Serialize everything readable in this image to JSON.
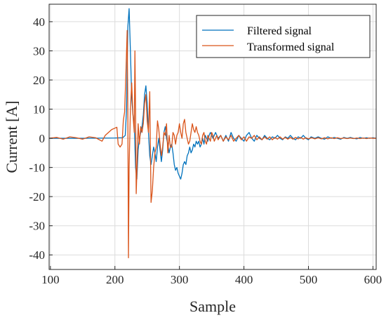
{
  "chart_data": {
    "type": "line",
    "xlabel": "Sample",
    "ylabel": "Current [A]",
    "xlim": [
      98,
      605
    ],
    "ylim": [
      -45,
      46
    ],
    "grid": true,
    "legend_position": "top-right",
    "xticks": [
      100,
      200,
      300,
      400,
      500,
      600
    ],
    "yticks": [
      -40,
      -30,
      -20,
      -10,
      0,
      10,
      20,
      30,
      40
    ],
    "colors": {
      "filtered": "#0072BD",
      "transformed": "#D95319"
    },
    "series": [
      {
        "name": "Filtered signal",
        "color": "#0072BD",
        "points": [
          [
            98,
            0
          ],
          [
            150,
            0
          ],
          [
            200,
            0.1
          ],
          [
            212,
            0.2
          ],
          [
            216,
            1
          ],
          [
            218,
            10
          ],
          [
            220,
            38
          ],
          [
            222,
            44.5
          ],
          [
            224,
            30
          ],
          [
            226,
            14
          ],
          [
            228,
            8
          ],
          [
            230,
            5
          ],
          [
            232,
            -10
          ],
          [
            234,
            -14
          ],
          [
            236,
            -4
          ],
          [
            238,
            0
          ],
          [
            240,
            2
          ],
          [
            242,
            4
          ],
          [
            244,
            8
          ],
          [
            246,
            15
          ],
          [
            248,
            18
          ],
          [
            250,
            12
          ],
          [
            252,
            2
          ],
          [
            254,
            -6
          ],
          [
            256,
            -9
          ],
          [
            258,
            -6
          ],
          [
            260,
            -3
          ],
          [
            262,
            -5
          ],
          [
            264,
            -8
          ],
          [
            266,
            -3
          ],
          [
            268,
            0
          ],
          [
            270,
            -4
          ],
          [
            272,
            -8
          ],
          [
            274,
            -4
          ],
          [
            276,
            2
          ],
          [
            278,
            4
          ],
          [
            280,
            0
          ],
          [
            282,
            -2
          ],
          [
            284,
            -5
          ],
          [
            286,
            -3
          ],
          [
            288,
            -2
          ],
          [
            290,
            -5
          ],
          [
            292,
            -9
          ],
          [
            294,
            -11
          ],
          [
            296,
            -10
          ],
          [
            298,
            -12
          ],
          [
            300,
            -13
          ],
          [
            302,
            -14
          ],
          [
            304,
            -12
          ],
          [
            306,
            -9
          ],
          [
            308,
            -8
          ],
          [
            310,
            -9
          ],
          [
            312,
            -6
          ],
          [
            314,
            -5
          ],
          [
            316,
            -3
          ],
          [
            318,
            -5
          ],
          [
            320,
            -4
          ],
          [
            322,
            -2
          ],
          [
            324,
            -3
          ],
          [
            326,
            -1
          ],
          [
            328,
            -2
          ],
          [
            330,
            -1
          ],
          [
            332,
            -3
          ],
          [
            334,
            -2
          ],
          [
            336,
            0
          ],
          [
            338,
            -2
          ],
          [
            340,
            1
          ],
          [
            342,
            0
          ],
          [
            344,
            -1
          ],
          [
            346,
            1
          ],
          [
            348,
            2
          ],
          [
            350,
            1
          ],
          [
            352,
            0
          ],
          [
            356,
            2
          ],
          [
            360,
            0
          ],
          [
            364,
            1
          ],
          [
            368,
            -1
          ],
          [
            372,
            1
          ],
          [
            376,
            -1
          ],
          [
            380,
            2
          ],
          [
            384,
            0
          ],
          [
            388,
            -1
          ],
          [
            392,
            1
          ],
          [
            396,
            0
          ],
          [
            400,
            -1
          ],
          [
            404,
            1
          ],
          [
            408,
            2
          ],
          [
            412,
            0
          ],
          [
            416,
            -1
          ],
          [
            420,
            1
          ],
          [
            424,
            0
          ],
          [
            428,
            -0.5
          ],
          [
            432,
            1
          ],
          [
            436,
            0
          ],
          [
            440,
            -0.5
          ],
          [
            444,
            0.5
          ],
          [
            448,
            0
          ],
          [
            452,
            1
          ],
          [
            456,
            0
          ],
          [
            460,
            -0.5
          ],
          [
            464,
            0.5
          ],
          [
            468,
            0
          ],
          [
            472,
            1
          ],
          [
            476,
            0
          ],
          [
            480,
            -0.5
          ],
          [
            484,
            0.5
          ],
          [
            488,
            0
          ],
          [
            492,
            1
          ],
          [
            496,
            0
          ],
          [
            500,
            -0.5
          ],
          [
            504,
            0.5
          ],
          [
            510,
            0
          ],
          [
            515,
            0.5
          ],
          [
            520,
            0
          ],
          [
            525,
            -0.3
          ],
          [
            530,
            0.5
          ],
          [
            535,
            0
          ],
          [
            540,
            0.3
          ],
          [
            545,
            0
          ],
          [
            550,
            -0.3
          ],
          [
            555,
            0.3
          ],
          [
            560,
            0
          ],
          [
            565,
            0.3
          ],
          [
            570,
            0
          ],
          [
            575,
            -0.2
          ],
          [
            580,
            0.3
          ],
          [
            585,
            0
          ],
          [
            590,
            0.2
          ],
          [
            595,
            0
          ],
          [
            600,
            0.2
          ],
          [
            605,
            0
          ]
        ]
      },
      {
        "name": "Transformed signal",
        "color": "#D95319",
        "points": [
          [
            98,
            0
          ],
          [
            110,
            0.3
          ],
          [
            120,
            -0.3
          ],
          [
            130,
            0.5
          ],
          [
            140,
            0.2
          ],
          [
            150,
            -0.3
          ],
          [
            160,
            0.5
          ],
          [
            170,
            0.2
          ],
          [
            180,
            -1
          ],
          [
            185,
            1
          ],
          [
            190,
            2
          ],
          [
            195,
            3
          ],
          [
            200,
            3.5
          ],
          [
            203,
            3.8
          ],
          [
            205,
            -2
          ],
          [
            208,
            -3
          ],
          [
            211,
            -2
          ],
          [
            213,
            6
          ],
          [
            215,
            9
          ],
          [
            217,
            22
          ],
          [
            219,
            37
          ],
          [
            220,
            10
          ],
          [
            221,
            -41
          ],
          [
            222,
            -10
          ],
          [
            224,
            10
          ],
          [
            226,
            19
          ],
          [
            228,
            8
          ],
          [
            230,
            2
          ],
          [
            231,
            30
          ],
          [
            232,
            10
          ],
          [
            233,
            -19
          ],
          [
            234,
            -12
          ],
          [
            236,
            5
          ],
          [
            238,
            -2
          ],
          [
            240,
            4
          ],
          [
            242,
            2
          ],
          [
            244,
            5
          ],
          [
            246,
            12
          ],
          [
            248,
            15
          ],
          [
            250,
            6
          ],
          [
            252,
            2
          ],
          [
            254,
            16
          ],
          [
            256,
            -22
          ],
          [
            258,
            -18
          ],
          [
            260,
            -10
          ],
          [
            262,
            -5
          ],
          [
            264,
            -3
          ],
          [
            266,
            6
          ],
          [
            268,
            3
          ],
          [
            270,
            -2
          ],
          [
            272,
            -6
          ],
          [
            274,
            -3
          ],
          [
            276,
            2
          ],
          [
            278,
            1
          ],
          [
            280,
            5
          ],
          [
            282,
            -5
          ],
          [
            284,
            1
          ],
          [
            286,
            -3
          ],
          [
            288,
            -3
          ],
          [
            290,
            2
          ],
          [
            292,
            1
          ],
          [
            294,
            -2
          ],
          [
            296,
            1
          ],
          [
            298,
            2
          ],
          [
            300,
            5
          ],
          [
            302,
            2
          ],
          [
            304,
            0
          ],
          [
            306,
            5
          ],
          [
            308,
            6.5
          ],
          [
            310,
            2
          ],
          [
            312,
            0
          ],
          [
            314,
            -2
          ],
          [
            316,
            -1
          ],
          [
            318,
            2
          ],
          [
            320,
            5
          ],
          [
            322,
            3
          ],
          [
            324,
            2
          ],
          [
            326,
            4
          ],
          [
            328,
            2
          ],
          [
            330,
            1
          ],
          [
            332,
            -1
          ],
          [
            334,
            -2
          ],
          [
            336,
            1
          ],
          [
            338,
            2
          ],
          [
            340,
            -1
          ],
          [
            342,
            -2
          ],
          [
            344,
            1
          ],
          [
            346,
            0
          ],
          [
            348,
            -1
          ],
          [
            350,
            2
          ],
          [
            352,
            1
          ],
          [
            354,
            -1
          ],
          [
            356,
            0
          ],
          [
            358,
            1
          ],
          [
            360,
            -0.5
          ],
          [
            364,
            1
          ],
          [
            368,
            -1
          ],
          [
            372,
            0.5
          ],
          [
            376,
            -0.5
          ],
          [
            380,
            1
          ],
          [
            384,
            -1
          ],
          [
            388,
            0
          ],
          [
            392,
            1
          ],
          [
            396,
            -0.5
          ],
          [
            400,
            0.5
          ],
          [
            404,
            -1
          ],
          [
            408,
            0.5
          ],
          [
            412,
            0
          ],
          [
            416,
            1
          ],
          [
            420,
            -0.5
          ],
          [
            424,
            0.5
          ],
          [
            428,
            -0.5
          ],
          [
            432,
            0.5
          ],
          [
            436,
            -0.3
          ],
          [
            440,
            0.5
          ],
          [
            444,
            -0.5
          ],
          [
            448,
            0.3
          ],
          [
            452,
            -0.3
          ],
          [
            456,
            0.5
          ],
          [
            460,
            -0.3
          ],
          [
            464,
            0.3
          ],
          [
            468,
            -0.3
          ],
          [
            472,
            0.3
          ],
          [
            476,
            -0.3
          ],
          [
            480,
            0.3
          ],
          [
            484,
            -0.2
          ],
          [
            488,
            0.3
          ],
          [
            492,
            -0.3
          ],
          [
            496,
            0.2
          ],
          [
            500,
            -0.2
          ],
          [
            505,
            0.2
          ],
          [
            510,
            -0.2
          ],
          [
            515,
            0.2
          ],
          [
            520,
            -0.2
          ],
          [
            525,
            0.2
          ],
          [
            530,
            -0.2
          ],
          [
            535,
            0.2
          ],
          [
            540,
            -0.1
          ],
          [
            545,
            0.2
          ],
          [
            550,
            -0.1
          ],
          [
            555,
            0.1
          ],
          [
            560,
            -0.1
          ],
          [
            565,
            0.1
          ],
          [
            570,
            -0.1
          ],
          [
            575,
            0.1
          ],
          [
            580,
            -0.1
          ],
          [
            585,
            0.1
          ],
          [
            590,
            -0.1
          ],
          [
            595,
            0.1
          ],
          [
            600,
            0
          ],
          [
            605,
            0
          ]
        ]
      }
    ]
  }
}
